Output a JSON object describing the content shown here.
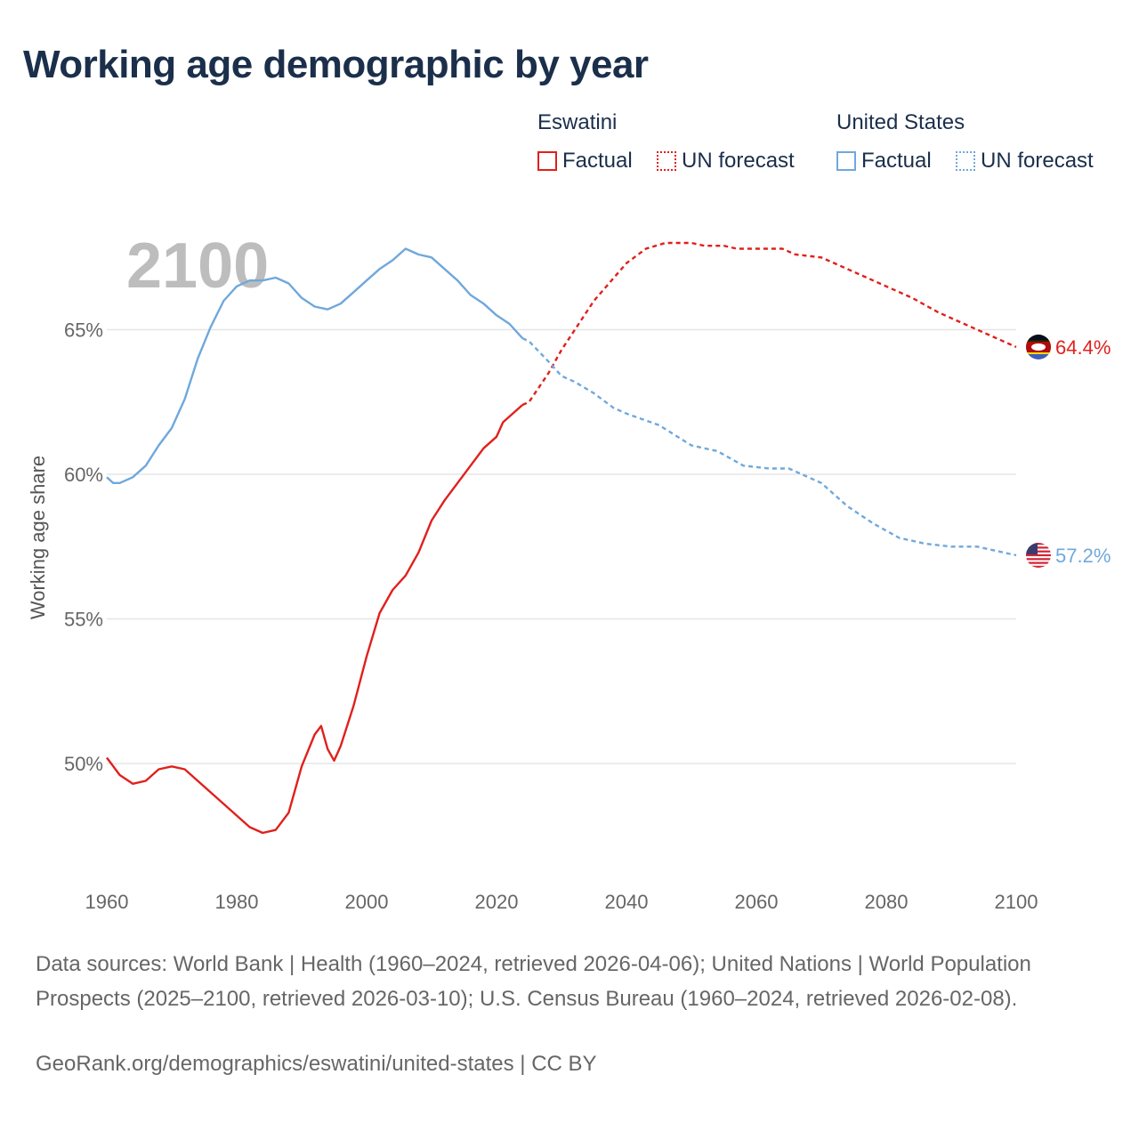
{
  "title": "Working age demographic by year",
  "legend": {
    "groups": [
      {
        "name": "Eswatini",
        "factual": "Factual",
        "forecast": "UN forecast"
      },
      {
        "name": "United States",
        "factual": "Factual",
        "forecast": "UN forecast"
      }
    ]
  },
  "colors": {
    "eswatini": "#e0201c",
    "united_states": "#6fa8dc",
    "grid": "#e6e6e6",
    "year_overlay": "#bdbdbd"
  },
  "chart_data": {
    "type": "line",
    "title": "Working age demographic by year",
    "ylabel": "Working age share",
    "xlabel": "",
    "xlim": [
      1960,
      2100
    ],
    "ylim": [
      46.0,
      70.0
    ],
    "x_ticks": [
      1960,
      1980,
      2000,
      2020,
      2040,
      2060,
      2080,
      2100
    ],
    "x_tick_labels": [
      "1960",
      "1980",
      "2000",
      "2020",
      "2040",
      "2060",
      "2080",
      "2100"
    ],
    "y_ticks": [
      50,
      55,
      60,
      65
    ],
    "y_tick_labels": [
      "50%",
      "55%",
      "60%",
      "65%"
    ],
    "year_overlay": "2100",
    "series": [
      {
        "name": "Eswatini",
        "end_label": "64.4%",
        "flag_icon": "eswatini-flag-icon",
        "factual_range": [
          1960,
          2024
        ],
        "points": [
          [
            1960,
            50.2
          ],
          [
            1962,
            49.6
          ],
          [
            1964,
            49.3
          ],
          [
            1966,
            49.4
          ],
          [
            1968,
            49.8
          ],
          [
            1970,
            49.9
          ],
          [
            1972,
            49.8
          ],
          [
            1974,
            49.4
          ],
          [
            1976,
            49.0
          ],
          [
            1978,
            48.6
          ],
          [
            1980,
            48.2
          ],
          [
            1982,
            47.8
          ],
          [
            1984,
            47.6
          ],
          [
            1986,
            47.7
          ],
          [
            1988,
            48.3
          ],
          [
            1990,
            49.9
          ],
          [
            1992,
            51.0
          ],
          [
            1993,
            51.3
          ],
          [
            1994,
            50.5
          ],
          [
            1995,
            50.1
          ],
          [
            1996,
            50.6
          ],
          [
            1998,
            52.0
          ],
          [
            2000,
            53.7
          ],
          [
            2002,
            55.2
          ],
          [
            2004,
            56.0
          ],
          [
            2006,
            56.5
          ],
          [
            2008,
            57.3
          ],
          [
            2010,
            58.4
          ],
          [
            2012,
            59.1
          ],
          [
            2014,
            59.7
          ],
          [
            2016,
            60.3
          ],
          [
            2018,
            60.9
          ],
          [
            2020,
            61.3
          ],
          [
            2021,
            61.8
          ],
          [
            2022,
            62.0
          ],
          [
            2024,
            62.4
          ],
          [
            2025,
            62.5
          ],
          [
            2028,
            63.5
          ],
          [
            2030,
            64.3
          ],
          [
            2035,
            66.0
          ],
          [
            2040,
            67.3
          ],
          [
            2043,
            67.8
          ],
          [
            2046,
            68.0
          ],
          [
            2050,
            68.0
          ],
          [
            2052,
            67.9
          ],
          [
            2055,
            67.9
          ],
          [
            2057,
            67.8
          ],
          [
            2060,
            67.8
          ],
          [
            2064,
            67.8
          ],
          [
            2066,
            67.6
          ],
          [
            2070,
            67.5
          ],
          [
            2075,
            67.0
          ],
          [
            2080,
            66.5
          ],
          [
            2084,
            66.1
          ],
          [
            2088,
            65.6
          ],
          [
            2092,
            65.2
          ],
          [
            2096,
            64.8
          ],
          [
            2100,
            64.4
          ]
        ]
      },
      {
        "name": "United States",
        "end_label": "57.2%",
        "flag_icon": "united-states-flag-icon",
        "factual_range": [
          1960,
          2024
        ],
        "points": [
          [
            1960,
            59.9
          ],
          [
            1961,
            59.7
          ],
          [
            1962,
            59.7
          ],
          [
            1964,
            59.9
          ],
          [
            1966,
            60.3
          ],
          [
            1968,
            61.0
          ],
          [
            1970,
            61.6
          ],
          [
            1972,
            62.6
          ],
          [
            1974,
            64.0
          ],
          [
            1976,
            65.1
          ],
          [
            1978,
            66.0
          ],
          [
            1980,
            66.5
          ],
          [
            1982,
            66.7
          ],
          [
            1984,
            66.7
          ],
          [
            1986,
            66.8
          ],
          [
            1988,
            66.6
          ],
          [
            1990,
            66.1
          ],
          [
            1992,
            65.8
          ],
          [
            1994,
            65.7
          ],
          [
            1996,
            65.9
          ],
          [
            1998,
            66.3
          ],
          [
            2000,
            66.7
          ],
          [
            2002,
            67.1
          ],
          [
            2004,
            67.4
          ],
          [
            2006,
            67.8
          ],
          [
            2008,
            67.6
          ],
          [
            2010,
            67.5
          ],
          [
            2012,
            67.1
          ],
          [
            2014,
            66.7
          ],
          [
            2016,
            66.2
          ],
          [
            2018,
            65.9
          ],
          [
            2020,
            65.5
          ],
          [
            2022,
            65.2
          ],
          [
            2024,
            64.7
          ],
          [
            2025,
            64.6
          ],
          [
            2028,
            63.9
          ],
          [
            2030,
            63.4
          ],
          [
            2032,
            63.2
          ],
          [
            2035,
            62.8
          ],
          [
            2038,
            62.3
          ],
          [
            2040,
            62.1
          ],
          [
            2045,
            61.7
          ],
          [
            2050,
            61.0
          ],
          [
            2054,
            60.8
          ],
          [
            2058,
            60.3
          ],
          [
            2062,
            60.2
          ],
          [
            2065,
            60.2
          ],
          [
            2070,
            59.7
          ],
          [
            2074,
            58.9
          ],
          [
            2078,
            58.3
          ],
          [
            2082,
            57.8
          ],
          [
            2086,
            57.6
          ],
          [
            2090,
            57.5
          ],
          [
            2094,
            57.5
          ],
          [
            2098,
            57.3
          ],
          [
            2100,
            57.2
          ]
        ]
      }
    ]
  },
  "footer": {
    "source": "Data sources: World Bank | Health (1960–2024, retrieved 2026-04-06); United Nations | World Population Prospects (2025–2100, retrieved 2026-03-10); U.S. Census Bureau (1960–2024, retrieved 2026-02-08).",
    "credit": "GeoRank.org/demographics/eswatini/united-states | CC BY"
  }
}
